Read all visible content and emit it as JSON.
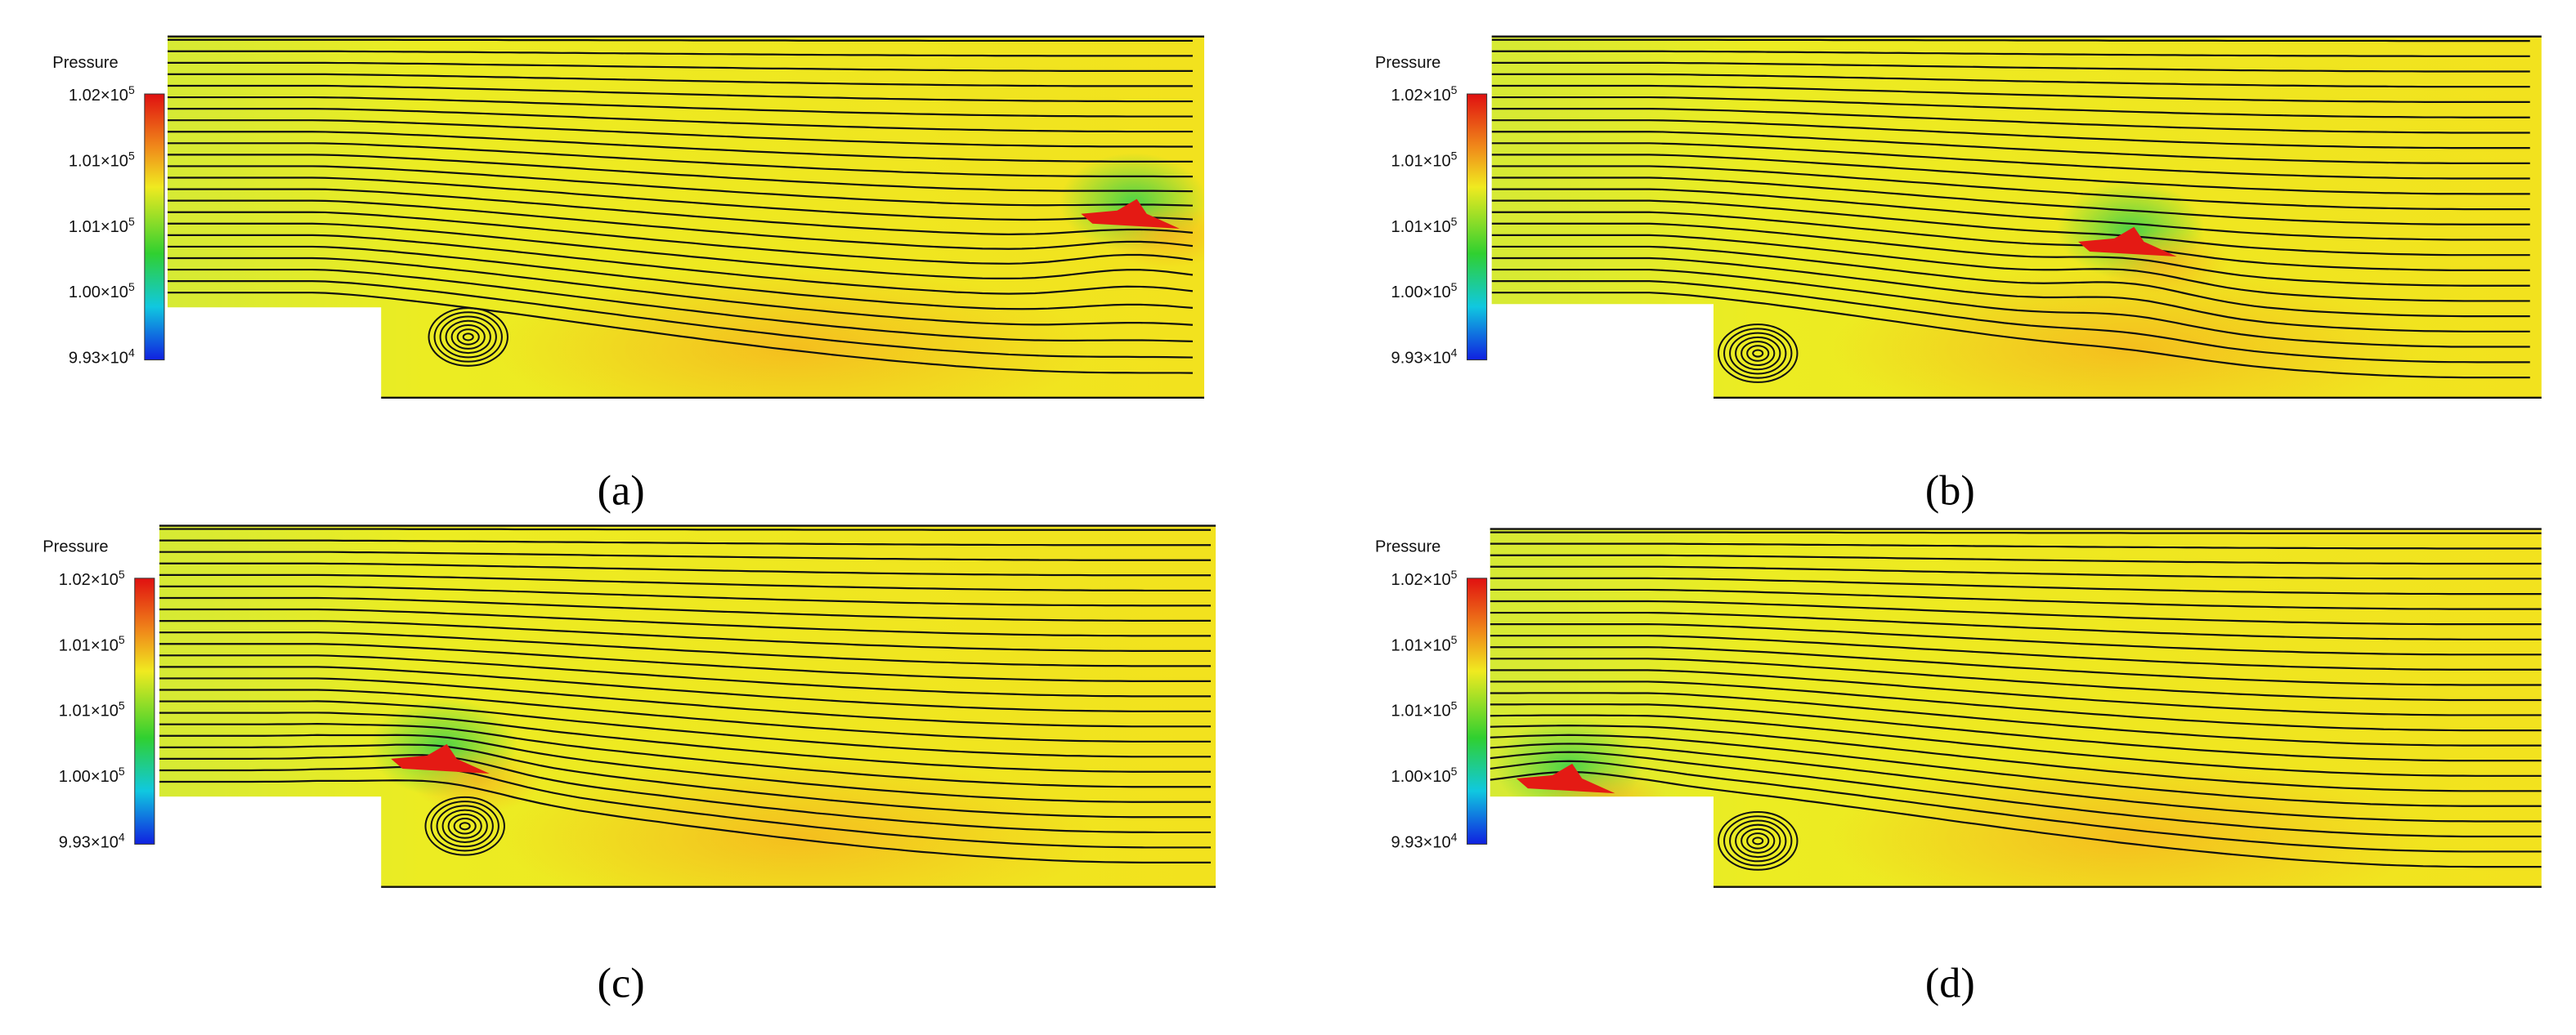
{
  "panels": [
    {
      "legend_title": "Pressure",
      "legend_ticks": [
        {
          "base": "1.02×10",
          "exponent": "5"
        },
        {
          "base": "1.01×10",
          "exponent": "5"
        },
        {
          "base": "1.01×10",
          "exponent": "5"
        },
        {
          "base": "1.00×10",
          "exponent": "5"
        },
        {
          "base": "9.93×10",
          "exponent": "4"
        }
      ],
      "caption": "(a)"
    },
    {
      "legend_title": "Pressure",
      "legend_ticks": [
        {
          "base": "1.02×10",
          "exponent": "5"
        },
        {
          "base": "1.01×10",
          "exponent": "5"
        },
        {
          "base": "1.01×10",
          "exponent": "5"
        },
        {
          "base": "1.00×10",
          "exponent": "5"
        },
        {
          "base": "9.93×10",
          "exponent": "4"
        }
      ],
      "caption": "(b)"
    },
    {
      "legend_title": "Pressure",
      "legend_ticks": [
        {
          "base": "1.02×10",
          "exponent": "5"
        },
        {
          "base": "1.01×10",
          "exponent": "5"
        },
        {
          "base": "1.01×10",
          "exponent": "5"
        },
        {
          "base": "1.00×10",
          "exponent": "5"
        },
        {
          "base": "9.93×10",
          "exponent": "4"
        }
      ],
      "caption": "(c)"
    },
    {
      "legend_title": "Pressure",
      "legend_ticks": [
        {
          "base": "1.02×10",
          "exponent": "5"
        },
        {
          "base": "1.01×10",
          "exponent": "5"
        },
        {
          "base": "1.01×10",
          "exponent": "5"
        },
        {
          "base": "1.00×10",
          "exponent": "5"
        },
        {
          "base": "9.93×10",
          "exponent": "4"
        }
      ],
      "caption": "(d)"
    }
  ]
}
